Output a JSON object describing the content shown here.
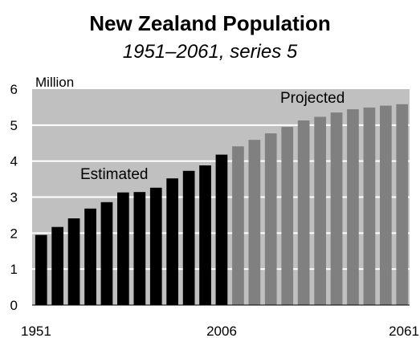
{
  "chart_data": {
    "type": "bar",
    "title": "New Zealand Population",
    "subtitle": "1951–2061, series 5",
    "ylabel": "Million",
    "xlabel": "",
    "ylim": [
      0,
      6
    ],
    "yticks": [
      "0",
      "1",
      "2",
      "3",
      "4",
      "5",
      "6"
    ],
    "xtick_labels": [
      "1951",
      "2006",
      "2061"
    ],
    "grid": true,
    "background_color": "#c0c0c0",
    "grid_color": "#ffffff",
    "series": [
      {
        "name": "Estimated",
        "color": "#000000",
        "x": [
          1951,
          1956,
          1961,
          1966,
          1971,
          1976,
          1981,
          1986,
          1991,
          1996,
          2001,
          2006
        ],
        "values": [
          1.95,
          2.17,
          2.41,
          2.68,
          2.86,
          3.13,
          3.14,
          3.26,
          3.52,
          3.73,
          3.88,
          4.18
        ]
      },
      {
        "name": "Projected",
        "color": "#808080",
        "x": [
          2011,
          2016,
          2021,
          2026,
          2031,
          2036,
          2041,
          2046,
          2051,
          2056,
          2061
        ],
        "values": [
          4.41,
          4.59,
          4.77,
          4.95,
          5.13,
          5.23,
          5.35,
          5.44,
          5.49,
          5.54,
          5.58
        ]
      }
    ]
  }
}
